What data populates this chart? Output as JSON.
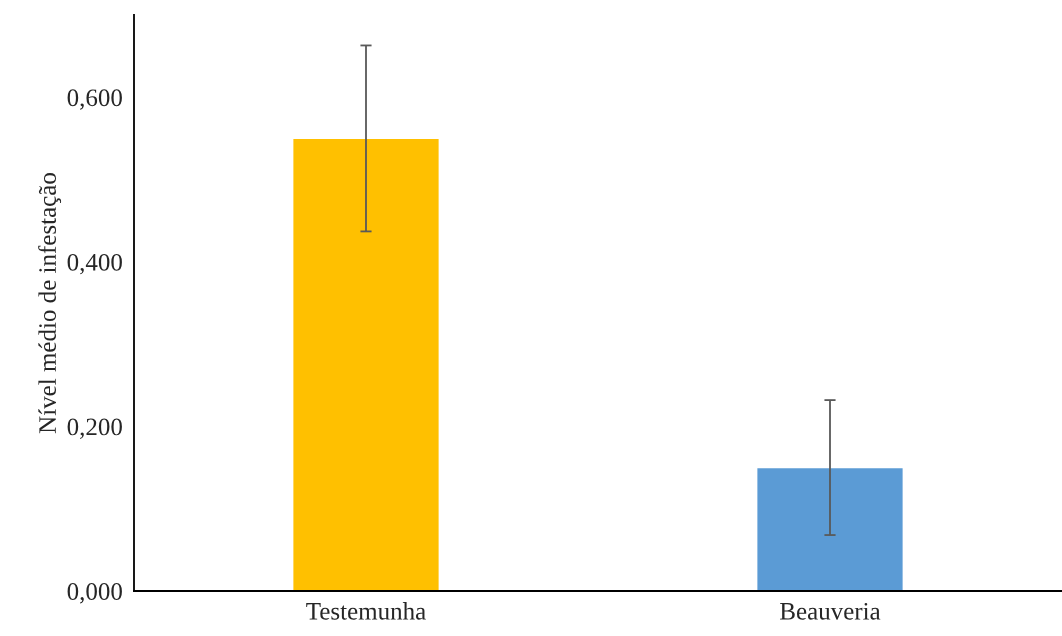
{
  "chart_data": {
    "type": "bar",
    "ylabel": "Nível médio de infestação",
    "categories": [
      "Testemunha",
      "Beauveria"
    ],
    "values": [
      0.55,
      0.15
    ],
    "colors": [
      "#ffc000",
      "#5b9bd5"
    ],
    "errors": [
      0.113,
      0.082
    ],
    "ylim": [
      0,
      0.7
    ],
    "yticks": [
      {
        "value": 0,
        "label": "0,000"
      },
      {
        "value": 0.2,
        "label": "0,200"
      },
      {
        "value": 0.4,
        "label": "0,400"
      },
      {
        "value": 0.6,
        "label": "0,600"
      }
    ],
    "grid": false,
    "legend": false
  }
}
